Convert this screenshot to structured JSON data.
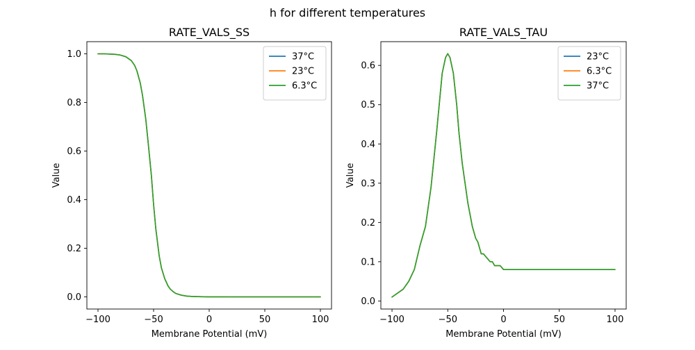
{
  "figure": {
    "suptitle": "h for different temperatures"
  },
  "chart_data": [
    {
      "type": "line",
      "title": "RATE_VALS_SS",
      "xlabel": "Membrane Potential (mV)",
      "ylabel": "Value",
      "xlim": [
        -110,
        110
      ],
      "ylim": [
        -0.05,
        1.05
      ],
      "xticks": [
        -100,
        -50,
        0,
        50,
        100
      ],
      "yticks": [
        0.0,
        0.2,
        0.4,
        0.6,
        0.8,
        1.0
      ],
      "xtick_labels": [
        "−100",
        "−50",
        "0",
        "50",
        "100"
      ],
      "ytick_labels": [
        "0.0",
        "0.2",
        "0.4",
        "0.6",
        "0.8",
        "1.0"
      ],
      "grid": false,
      "legend_position": "top-right",
      "x": [
        -100,
        -95,
        -90,
        -85,
        -80,
        -75,
        -70,
        -67,
        -65,
        -62,
        -60,
        -57,
        -55,
        -52,
        -50,
        -48,
        -45,
        -43,
        -40,
        -37,
        -35,
        -32,
        -30,
        -25,
        -20,
        -15,
        -10,
        -5,
        0,
        10,
        20,
        40,
        60,
        80,
        100
      ],
      "series": [
        {
          "name": "37°C",
          "color": "#1f77b4",
          "values": [
            1.0,
            1.0,
            0.999,
            0.998,
            0.995,
            0.988,
            0.972,
            0.952,
            0.93,
            0.88,
            0.83,
            0.73,
            0.64,
            0.5,
            0.38,
            0.28,
            0.17,
            0.12,
            0.075,
            0.045,
            0.032,
            0.02,
            0.014,
            0.007,
            0.003,
            0.0015,
            0.0008,
            0.0004,
            0.0002,
            0.0001,
            0.0,
            0.0,
            0.0,
            0.0,
            0.0
          ]
        },
        {
          "name": "23°C",
          "color": "#ff7f0e",
          "values": [
            1.0,
            1.0,
            0.999,
            0.998,
            0.995,
            0.988,
            0.972,
            0.952,
            0.93,
            0.88,
            0.83,
            0.73,
            0.64,
            0.5,
            0.38,
            0.28,
            0.17,
            0.12,
            0.075,
            0.045,
            0.032,
            0.02,
            0.014,
            0.007,
            0.003,
            0.0015,
            0.0008,
            0.0004,
            0.0002,
            0.0001,
            0.0,
            0.0,
            0.0,
            0.0,
            0.0
          ]
        },
        {
          "name": "6.3°C",
          "color": "#2ca02c",
          "values": [
            1.0,
            1.0,
            0.999,
            0.998,
            0.995,
            0.988,
            0.972,
            0.952,
            0.93,
            0.88,
            0.83,
            0.73,
            0.64,
            0.5,
            0.38,
            0.28,
            0.17,
            0.12,
            0.075,
            0.045,
            0.032,
            0.02,
            0.014,
            0.007,
            0.003,
            0.0015,
            0.0008,
            0.0004,
            0.0002,
            0.0001,
            0.0,
            0.0,
            0.0,
            0.0,
            0.0
          ]
        }
      ]
    },
    {
      "type": "line",
      "title": "RATE_VALS_TAU",
      "xlabel": "Membrane Potential (mV)",
      "ylabel": "Value",
      "xlim": [
        -110,
        110
      ],
      "ylim": [
        -0.0205,
        0.6605
      ],
      "xticks": [
        -100,
        -50,
        0,
        50,
        100
      ],
      "yticks": [
        0.0,
        0.1,
        0.2,
        0.3,
        0.4,
        0.5,
        0.6
      ],
      "xtick_labels": [
        "−100",
        "−50",
        "0",
        "50",
        "100"
      ],
      "ytick_labels": [
        "0.0",
        "0.1",
        "0.2",
        "0.3",
        "0.4",
        "0.5",
        "0.6"
      ],
      "grid": false,
      "legend_position": "top-right",
      "x": [
        -100,
        -90,
        -85,
        -80,
        -75,
        -70,
        -65,
        -60,
        -57,
        -55,
        -52,
        -50,
        -48,
        -45,
        -42,
        -40,
        -37,
        -35,
        -32,
        -30,
        -28,
        -25,
        -23,
        -20,
        -18,
        -15,
        -12,
        -10,
        -8,
        -5,
        -3,
        0,
        20,
        50,
        100
      ],
      "series": [
        {
          "name": "23°C",
          "color": "#1f77b4",
          "values": [
            0.01,
            0.03,
            0.05,
            0.08,
            0.14,
            0.19,
            0.29,
            0.43,
            0.52,
            0.58,
            0.62,
            0.63,
            0.62,
            0.58,
            0.5,
            0.43,
            0.35,
            0.31,
            0.25,
            0.22,
            0.19,
            0.16,
            0.15,
            0.12,
            0.12,
            0.11,
            0.1,
            0.1,
            0.09,
            0.09,
            0.09,
            0.08,
            0.08,
            0.08,
            0.08
          ]
        },
        {
          "name": "6.3°C",
          "color": "#ff7f0e",
          "values": [
            0.01,
            0.03,
            0.05,
            0.08,
            0.14,
            0.19,
            0.29,
            0.43,
            0.52,
            0.58,
            0.62,
            0.63,
            0.62,
            0.58,
            0.5,
            0.43,
            0.35,
            0.31,
            0.25,
            0.22,
            0.19,
            0.16,
            0.15,
            0.12,
            0.12,
            0.11,
            0.1,
            0.1,
            0.09,
            0.09,
            0.09,
            0.08,
            0.08,
            0.08,
            0.08
          ]
        },
        {
          "name": "37°C",
          "color": "#2ca02c",
          "values": [
            0.01,
            0.03,
            0.05,
            0.08,
            0.14,
            0.19,
            0.29,
            0.43,
            0.52,
            0.58,
            0.62,
            0.63,
            0.62,
            0.58,
            0.5,
            0.43,
            0.35,
            0.31,
            0.25,
            0.22,
            0.19,
            0.16,
            0.15,
            0.12,
            0.12,
            0.11,
            0.1,
            0.1,
            0.09,
            0.09,
            0.09,
            0.08,
            0.08,
            0.08,
            0.08
          ]
        }
      ]
    }
  ]
}
